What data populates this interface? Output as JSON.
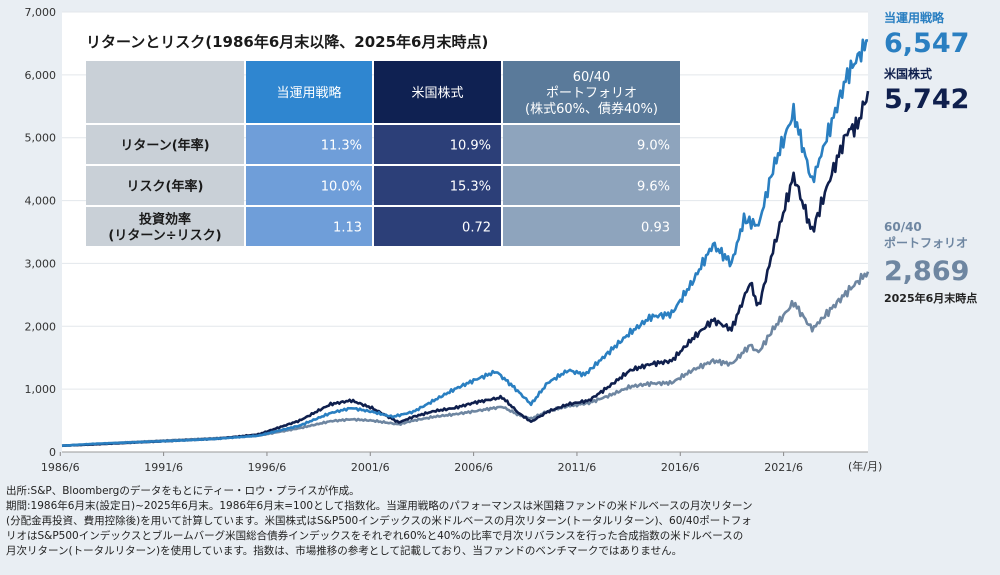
{
  "chart_data": {
    "type": "line",
    "title": "リターンとリスク(1986年6月末以降、2025年6月末時点)",
    "x_unit_label": "(年/月)",
    "x_ticks": [
      "1986/6",
      "1991/6",
      "1996/6",
      "2001/6",
      "2006/6",
      "2011/6",
      "2016/6",
      "2021/6"
    ],
    "y_ticks": [
      "0",
      "1,000",
      "2,000",
      "3,000",
      "4,000",
      "5,000",
      "6,000",
      "7,000"
    ],
    "ylim": [
      0,
      7000
    ],
    "xlim": [
      1986.5,
      2025.5
    ],
    "grid": true,
    "series": [
      {
        "name": "当運用戦略",
        "color": "#2a7fc1",
        "points": [
          [
            1986.5,
            100
          ],
          [
            1988,
            130
          ],
          [
            1990,
            155
          ],
          [
            1992,
            180
          ],
          [
            1994,
            210
          ],
          [
            1996,
            260
          ],
          [
            1998,
            420
          ],
          [
            1999.5,
            620
          ],
          [
            2000.5,
            700
          ],
          [
            2001.5,
            640
          ],
          [
            2002.5,
            560
          ],
          [
            2003.5,
            640
          ],
          [
            2004.5,
            820
          ],
          [
            2005.5,
            1000
          ],
          [
            2006.5,
            1150
          ],
          [
            2007.5,
            1280
          ],
          [
            2008.3,
            1050
          ],
          [
            2009.2,
            760
          ],
          [
            2010,
            1100
          ],
          [
            2011,
            1300
          ],
          [
            2011.8,
            1230
          ],
          [
            2013,
            1600
          ],
          [
            2014,
            1900
          ],
          [
            2015,
            2150
          ],
          [
            2016,
            2200
          ],
          [
            2017,
            2700
          ],
          [
            2018,
            3300
          ],
          [
            2018.9,
            3000
          ],
          [
            2019.5,
            3700
          ],
          [
            2020.2,
            3600
          ],
          [
            2020.9,
            4500
          ],
          [
            2021.9,
            5400
          ],
          [
            2022.8,
            4300
          ],
          [
            2023.5,
            5000
          ],
          [
            2024.5,
            6000
          ],
          [
            2025.5,
            6547
          ]
        ]
      },
      {
        "name": "米国株式",
        "color": "#0f1f4d",
        "points": [
          [
            1986.5,
            100
          ],
          [
            1988,
            120
          ],
          [
            1990,
            150
          ],
          [
            1992,
            180
          ],
          [
            1994,
            210
          ],
          [
            1996,
            280
          ],
          [
            1998,
            500
          ],
          [
            1999.5,
            760
          ],
          [
            2000.5,
            820
          ],
          [
            2001.5,
            700
          ],
          [
            2002.8,
            470
          ],
          [
            2003.5,
            560
          ],
          [
            2004.5,
            650
          ],
          [
            2005.5,
            700
          ],
          [
            2006.5,
            790
          ],
          [
            2007.8,
            870
          ],
          [
            2008.6,
            620
          ],
          [
            2009.2,
            480
          ],
          [
            2010,
            640
          ],
          [
            2011,
            760
          ],
          [
            2012,
            820
          ],
          [
            2013,
            1050
          ],
          [
            2014,
            1300
          ],
          [
            2015,
            1400
          ],
          [
            2016,
            1450
          ],
          [
            2017,
            1800
          ],
          [
            2018,
            2100
          ],
          [
            2018.9,
            1950
          ],
          [
            2019.8,
            2700
          ],
          [
            2020.2,
            2300
          ],
          [
            2020.9,
            3200
          ],
          [
            2021.9,
            4400
          ],
          [
            2022.8,
            3500
          ],
          [
            2023.5,
            4200
          ],
          [
            2024.5,
            5100
          ],
          [
            2025,
            5200
          ],
          [
            2025.5,
            5742
          ]
        ]
      },
      {
        "name": "60/40ポートフォリオ",
        "color": "#6e86a1",
        "points": [
          [
            1986.5,
            100
          ],
          [
            1988,
            125
          ],
          [
            1990,
            160
          ],
          [
            1992,
            190
          ],
          [
            1994,
            220
          ],
          [
            1996,
            260
          ],
          [
            1998,
            380
          ],
          [
            1999.5,
            490
          ],
          [
            2000.5,
            520
          ],
          [
            2001.5,
            500
          ],
          [
            2002.8,
            440
          ],
          [
            2003.5,
            500
          ],
          [
            2004.5,
            560
          ],
          [
            2005.5,
            600
          ],
          [
            2006.5,
            650
          ],
          [
            2007.8,
            720
          ],
          [
            2008.6,
            590
          ],
          [
            2009.2,
            530
          ],
          [
            2010,
            650
          ],
          [
            2011,
            730
          ],
          [
            2012,
            780
          ],
          [
            2013,
            900
          ],
          [
            2014,
            1040
          ],
          [
            2015,
            1090
          ],
          [
            2016,
            1100
          ],
          [
            2017,
            1300
          ],
          [
            2018,
            1450
          ],
          [
            2018.9,
            1400
          ],
          [
            2019.8,
            1700
          ],
          [
            2020.2,
            1580
          ],
          [
            2020.9,
            1950
          ],
          [
            2021.9,
            2380
          ],
          [
            2022.8,
            1950
          ],
          [
            2023.5,
            2200
          ],
          [
            2024.5,
            2550
          ],
          [
            2025.5,
            2869
          ]
        ]
      }
    ],
    "callouts": {
      "strategy": {
        "name": "当運用戦略",
        "value": "6,547",
        "color": "#2a7fc1"
      },
      "us_stock": {
        "name": "米国株式",
        "value": "5,742",
        "color": "#0f1f4d"
      },
      "portfolio": {
        "name_line1": "60/40",
        "name_line2": "ポートフォリオ",
        "value": "2,869",
        "note": "2025年6月末時点",
        "color": "#6e86a1"
      }
    },
    "table": {
      "columns": [
        {
          "lines": [
            "当運用戦略"
          ],
          "header_color": "#2f86d0"
        },
        {
          "lines": [
            "米国株式"
          ],
          "header_color": "#0f2152"
        },
        {
          "lines": [
            "60/40",
            "ポートフォリオ",
            "(株式60%、債券40%)"
          ],
          "header_color": "#5a7a9a"
        }
      ],
      "rows": [
        {
          "label_lines": [
            "リターン(年率)"
          ],
          "values": [
            "11.3%",
            "10.9%",
            "9.0%"
          ]
        },
        {
          "label_lines": [
            "リスク(年率)"
          ],
          "values": [
            "10.0%",
            "15.3%",
            "9.6%"
          ]
        },
        {
          "label_lines": [
            "投資効率",
            "(リターン÷リスク)"
          ],
          "values": [
            "1.13",
            "0.72",
            "0.93"
          ]
        }
      ],
      "body_colors": [
        "#6f9ed9",
        "#2c3f78",
        "#8ea4bd"
      ],
      "header_blank_color": "#c9d0d7",
      "label_color": "#c9d0d7"
    }
  },
  "footnotes": [
    "出所:S&P、Bloombergのデータをもとにティー・ロウ・プライスが作成。",
    "期間:1986年6月末(設定日)~2025年6月末。1986年6月末=100として指数化。当運用戦略のパフォーマンスは米国籍ファンドの米ドルベースの月次リターン",
    "(分配金再投資、費用控除後)を用いて計算しています。米国株式はS&P500インデックスの米ドルベースの月次リターン(トータルリターン)、60/40ポートフォ",
    "リオはS&P500インデックスとブルームバーグ米国総合債券インデックスをそれぞれ60%と40%の比率で月次リバランスを行った合成指数の米ドルベースの",
    "月次リターン(トータルリターン)を使用しています。指数は、市場推移の参考として記載しており、当ファンドのベンチマークではありません。"
  ]
}
